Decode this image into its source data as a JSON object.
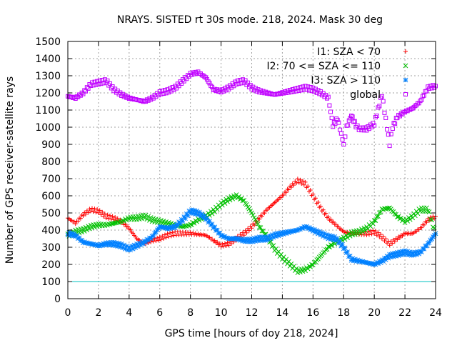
{
  "chart_data": {
    "type": "scatter",
    "title": "NRAYS. SISTED rt 30s mode. 218, 2024. Mask 30 deg",
    "xlabel": "GPS time [hours of doy 218, 2024]",
    "ylabel": "Number of GPS receiver-satellite rays",
    "xlim": [
      0,
      24
    ],
    "ylim": [
      0,
      1500
    ],
    "xticks": [
      "0",
      "2",
      "4",
      "6",
      "8",
      "10",
      "12",
      "14",
      "16",
      "18",
      "20",
      "22",
      "24"
    ],
    "yticks": [
      "0",
      "100",
      "200",
      "300",
      "400",
      "500",
      "600",
      "700",
      "800",
      "900",
      "1000",
      "1100",
      "1200",
      "1300",
      "1400",
      "1500"
    ],
    "grid": true,
    "legend_position": "top-right",
    "reference_line": {
      "y": 100,
      "color": "#00c0c0"
    },
    "series": [
      {
        "name": "I1: SZA < 70",
        "color": "#ff0000",
        "marker": "+",
        "x": [
          0,
          0.5,
          1,
          1.5,
          2,
          2.5,
          3,
          3.5,
          4,
          4.5,
          5,
          5.5,
          6,
          6.5,
          7,
          7.5,
          8,
          8.5,
          9,
          9.5,
          10,
          10.5,
          11,
          11.5,
          12,
          12.5,
          13,
          13.5,
          14,
          14.5,
          15,
          15.5,
          16,
          16.5,
          17,
          17.5,
          18,
          18.5,
          19,
          19.5,
          20,
          20.5,
          21,
          21.5,
          22,
          22.5,
          23,
          23.5,
          24
        ],
        "values": [
          470,
          440,
          490,
          520,
          510,
          480,
          470,
          450,
          410,
          350,
          320,
          340,
          350,
          370,
          380,
          380,
          380,
          375,
          370,
          340,
          310,
          320,
          350,
          380,
          420,
          470,
          520,
          560,
          600,
          650,
          690,
          670,
          600,
          530,
          470,
          430,
          390,
          380,
          380,
          380,
          390,
          360,
          320,
          350,
          380,
          380,
          410,
          460,
          480
        ]
      },
      {
        "name": "I2: 70 <= SZA <= 110",
        "color": "#00c000",
        "marker": "x",
        "x": [
          0,
          0.5,
          1,
          1.5,
          2,
          2.5,
          3,
          3.5,
          4,
          4.5,
          5,
          5.5,
          6,
          6.5,
          7,
          7.5,
          8,
          8.5,
          9,
          9.5,
          10,
          10.5,
          11,
          11.5,
          12,
          12.5,
          13,
          13.5,
          14,
          14.5,
          15,
          15.5,
          16,
          16.5,
          17,
          17.5,
          18,
          18.5,
          19,
          19.5,
          20,
          20.5,
          21,
          21.5,
          22,
          22.5,
          23,
          23.5,
          24
        ],
        "values": [
          370,
          390,
          400,
          420,
          430,
          430,
          440,
          450,
          470,
          470,
          480,
          460,
          450,
          440,
          430,
          420,
          430,
          460,
          480,
          510,
          550,
          580,
          600,
          570,
          500,
          420,
          360,
          290,
          240,
          200,
          160,
          170,
          200,
          250,
          300,
          330,
          350,
          380,
          390,
          410,
          450,
          520,
          530,
          480,
          450,
          480,
          520,
          520,
          380
        ]
      },
      {
        "name": "I3: SZA > 110",
        "color": "#0080ff",
        "marker": "*",
        "x": [
          0,
          0.5,
          1,
          1.5,
          2,
          2.5,
          3,
          3.5,
          4,
          4.5,
          5,
          5.5,
          6,
          6.5,
          7,
          7.5,
          8,
          8.5,
          9,
          9.5,
          10,
          10.5,
          11,
          11.5,
          12,
          12.5,
          13,
          13.5,
          14,
          14.5,
          15,
          15.5,
          16,
          16.5,
          17,
          17.5,
          18,
          18.5,
          19,
          19.5,
          20,
          20.5,
          21,
          21.5,
          22,
          22.5,
          23,
          23.5,
          24
        ],
        "values": [
          380,
          370,
          330,
          320,
          310,
          320,
          320,
          310,
          290,
          310,
          330,
          360,
          420,
          410,
          420,
          460,
          510,
          500,
          470,
          420,
          370,
          350,
          350,
          340,
          340,
          350,
          350,
          370,
          380,
          390,
          400,
          420,
          400,
          380,
          360,
          350,
          300,
          230,
          220,
          210,
          200,
          220,
          250,
          260,
          270,
          260,
          270,
          320,
          380
        ]
      },
      {
        "name": "global",
        "color": "#c000ff",
        "marker": "square",
        "x": [
          0,
          0.5,
          1,
          1.5,
          2,
          2.5,
          3,
          3.5,
          4,
          4.5,
          5,
          5.5,
          6,
          6.5,
          7,
          7.5,
          8,
          8.5,
          9,
          9.5,
          10,
          10.5,
          11,
          11.5,
          12,
          12.5,
          13,
          13.5,
          14,
          14.5,
          15,
          15.5,
          16,
          16.5,
          17,
          17.3,
          17.6,
          18,
          18.2,
          18.5,
          18.8,
          19,
          19.5,
          20,
          20.5,
          21,
          21.2,
          21.5,
          22,
          22.5,
          23,
          23.5,
          24
        ],
        "values": [
          1180,
          1170,
          1200,
          1250,
          1260,
          1270,
          1220,
          1190,
          1170,
          1160,
          1150,
          1170,
          1200,
          1210,
          1230,
          1270,
          1310,
          1320,
          1290,
          1220,
          1210,
          1230,
          1260,
          1270,
          1230,
          1210,
          1200,
          1190,
          1200,
          1210,
          1220,
          1230,
          1220,
          1200,
          1170,
          1010,
          1050,
          900,
          1000,
          1070,
          1010,
          990,
          990,
          1020,
          1190,
          900,
          1000,
          1060,
          1090,
          1110,
          1150,
          1230,
          1240
        ]
      }
    ]
  }
}
